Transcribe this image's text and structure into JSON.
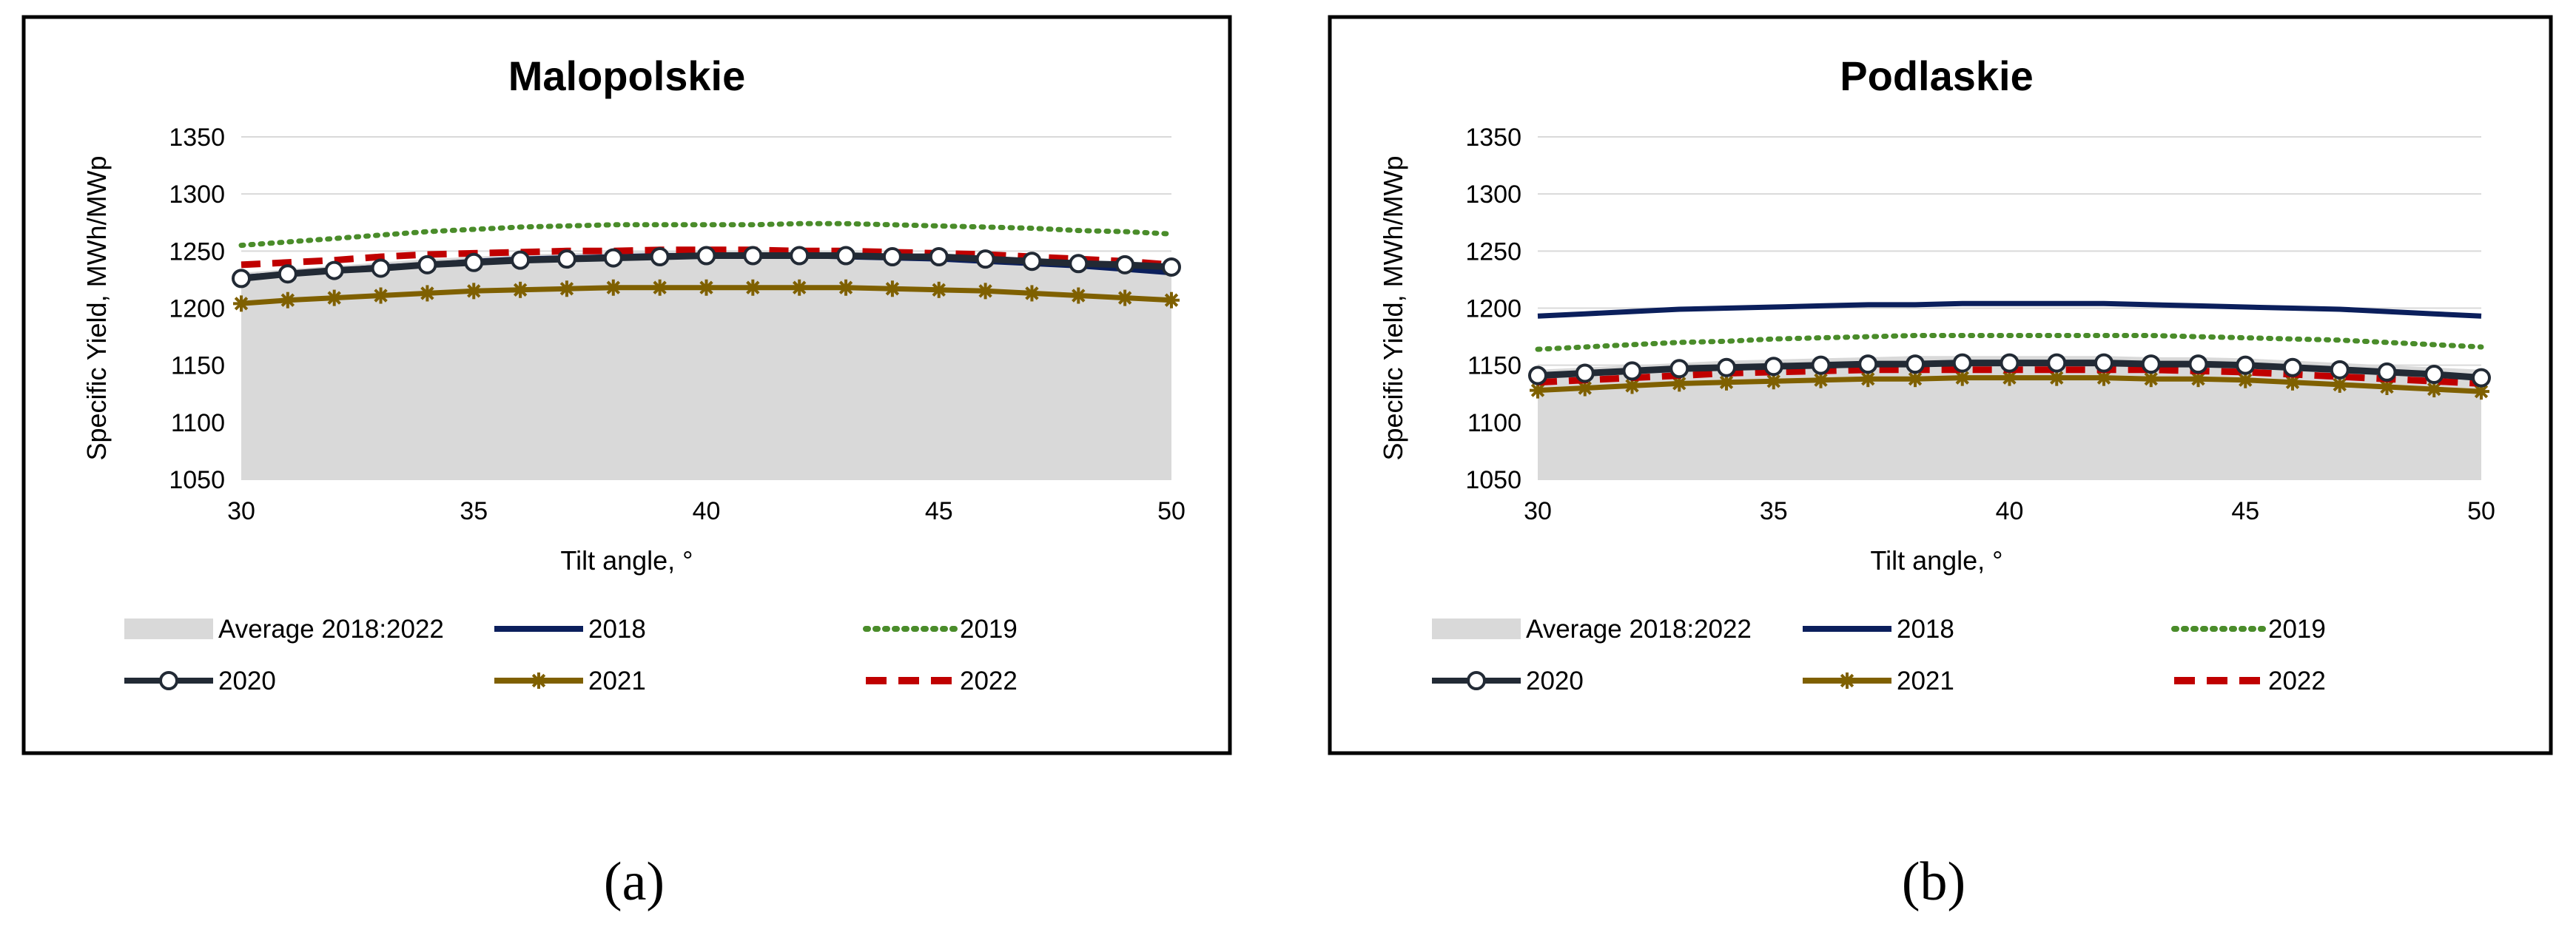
{
  "chart_data": [
    {
      "type": "line",
      "panel_caption": "(a)",
      "title": "Malopolskie",
      "xlabel": "Tilt angle, °",
      "ylabel": "Specific Yield, MWh/MWp",
      "xlim": [
        30,
        50
      ],
      "ylim": [
        1050,
        1350
      ],
      "xticks": [
        "30",
        "35",
        "40",
        "45",
        "50"
      ],
      "yticks": [
        "1050",
        "1100",
        "1150",
        "1200",
        "1250",
        "1300",
        "1350"
      ],
      "grid": "horizontal",
      "legend": "bottom",
      "x": [
        30,
        31,
        32,
        33,
        34,
        35,
        36,
        37,
        38,
        39,
        40,
        41,
        42,
        43,
        44,
        45,
        46,
        47,
        48,
        49,
        50
      ],
      "series": [
        {
          "name": "Average 2018:2022",
          "style": "area",
          "color": "#d9d9d9",
          "values": [
            1231,
            1234,
            1237,
            1240,
            1243,
            1245,
            1247,
            1248,
            1249,
            1250,
            1250,
            1250,
            1250,
            1249,
            1248,
            1247,
            1245,
            1243,
            1240,
            1237,
            1234
          ]
        },
        {
          "name": "2018",
          "style": "solid",
          "color": "#0b1f5c",
          "values": [
            1227,
            1230,
            1233,
            1236,
            1238,
            1241,
            1243,
            1244,
            1245,
            1246,
            1246,
            1246,
            1246,
            1245,
            1244,
            1243,
            1241,
            1239,
            1237,
            1234,
            1231
          ]
        },
        {
          "name": "2019",
          "style": "dotted",
          "color": "#4a8c2a",
          "values": [
            1255,
            1258,
            1261,
            1264,
            1267,
            1269,
            1271,
            1272,
            1273,
            1273,
            1273,
            1273,
            1274,
            1274,
            1273,
            1272,
            1271,
            1270,
            1268,
            1267,
            1265
          ]
        },
        {
          "name": "2020",
          "style": "circle",
          "color": "#222a35",
          "values": [
            1226,
            1230,
            1233,
            1235,
            1238,
            1240,
            1242,
            1243,
            1244,
            1245,
            1246,
            1246,
            1246,
            1246,
            1245,
            1245,
            1243,
            1241,
            1239,
            1238,
            1236
          ]
        },
        {
          "name": "2021",
          "style": "star",
          "color": "#7f6000",
          "values": [
            1204,
            1207,
            1209,
            1211,
            1213,
            1215,
            1216,
            1217,
            1218,
            1218,
            1218,
            1218,
            1218,
            1218,
            1217,
            1216,
            1215,
            1213,
            1211,
            1209,
            1207
          ]
        },
        {
          "name": "2022",
          "style": "dashed",
          "color": "#c00000",
          "values": [
            1238,
            1240,
            1242,
            1245,
            1247,
            1248,
            1249,
            1250,
            1250,
            1251,
            1251,
            1251,
            1250,
            1250,
            1249,
            1248,
            1247,
            1245,
            1243,
            1241,
            1238
          ]
        }
      ]
    },
    {
      "type": "line",
      "panel_caption": "(b)",
      "title": "Podlaskie",
      "xlabel": "Tilt angle, °",
      "ylabel": "Specific Yield, MWh/MWp",
      "xlim": [
        30,
        50
      ],
      "ylim": [
        1050,
        1350
      ],
      "xticks": [
        "30",
        "35",
        "40",
        "45",
        "50"
      ],
      "yticks": [
        "1050",
        "1100",
        "1150",
        "1200",
        "1250",
        "1300",
        "1350"
      ],
      "grid": "horizontal",
      "legend": "bottom",
      "x": [
        30,
        31,
        32,
        33,
        34,
        35,
        36,
        37,
        38,
        39,
        40,
        41,
        42,
        43,
        44,
        45,
        46,
        47,
        48,
        49,
        50
      ],
      "series": [
        {
          "name": "Average 2018:2022",
          "style": "area",
          "color": "#d9d9d9",
          "values": [
            1146,
            1148,
            1150,
            1152,
            1154,
            1155,
            1156,
            1157,
            1158,
            1158,
            1158,
            1158,
            1158,
            1157,
            1157,
            1156,
            1154,
            1152,
            1150,
            1148,
            1146
          ]
        },
        {
          "name": "2018",
          "style": "solid",
          "color": "#0b1f5c",
          "values": [
            1193,
            1195,
            1197,
            1199,
            1200,
            1201,
            1202,
            1203,
            1203,
            1204,
            1204,
            1204,
            1204,
            1203,
            1202,
            1201,
            1200,
            1199,
            1197,
            1195,
            1193
          ]
        },
        {
          "name": "2019",
          "style": "dotted",
          "color": "#4a8c2a",
          "values": [
            1164,
            1166,
            1168,
            1170,
            1171,
            1173,
            1174,
            1175,
            1176,
            1176,
            1176,
            1176,
            1176,
            1176,
            1175,
            1174,
            1173,
            1172,
            1170,
            1168,
            1166
          ]
        },
        {
          "name": "2020",
          "style": "circle",
          "color": "#222a35",
          "values": [
            1141,
            1143,
            1145,
            1147,
            1148,
            1149,
            1150,
            1151,
            1151,
            1152,
            1152,
            1152,
            1152,
            1151,
            1151,
            1150,
            1148,
            1146,
            1144,
            1142,
            1139
          ]
        },
        {
          "name": "2021",
          "style": "star",
          "color": "#7f6000",
          "values": [
            1128,
            1130,
            1132,
            1134,
            1135,
            1136,
            1137,
            1138,
            1138,
            1139,
            1139,
            1139,
            1139,
            1138,
            1138,
            1137,
            1135,
            1133,
            1131,
            1129,
            1127
          ]
        },
        {
          "name": "2022",
          "style": "dashed",
          "color": "#c00000",
          "values": [
            1135,
            1137,
            1139,
            1141,
            1143,
            1144,
            1145,
            1146,
            1146,
            1146,
            1146,
            1146,
            1146,
            1146,
            1145,
            1144,
            1142,
            1140,
            1138,
            1136,
            1134
          ]
        }
      ]
    }
  ]
}
